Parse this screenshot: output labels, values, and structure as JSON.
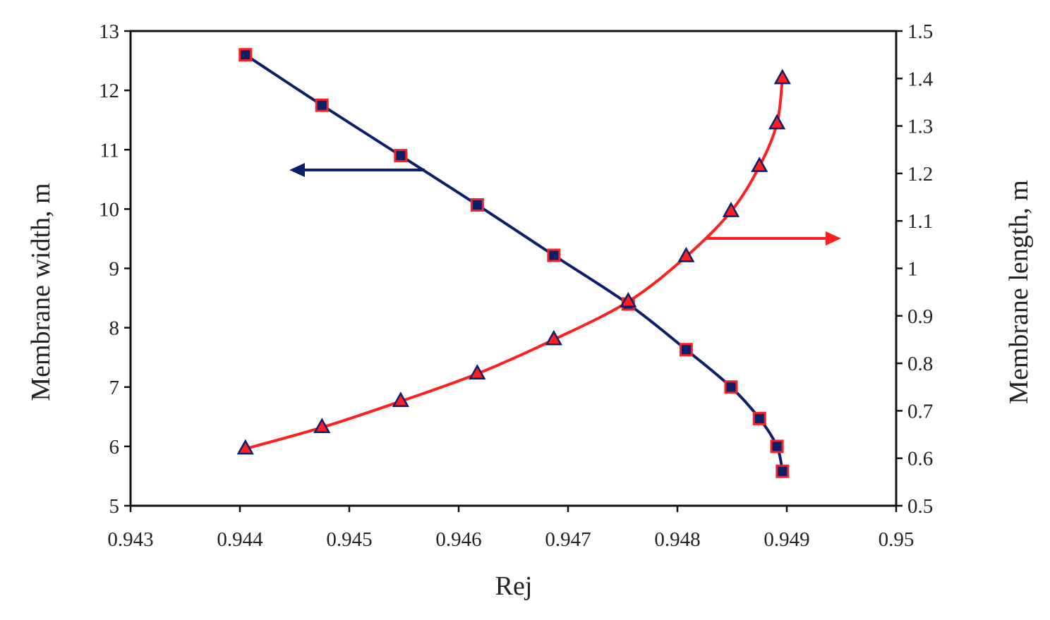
{
  "chart_data": {
    "type": "line",
    "title": "",
    "xlabel": "Rej",
    "ylabel_left": "Membrane  width,  m",
    "ylabel_right": "Membrane  length,  m",
    "xlim": [
      0.943,
      0.95
    ],
    "ylim_left": [
      5,
      13
    ],
    "ylim_right": [
      0.5,
      1.5
    ],
    "x_ticks": [
      "0.943",
      "0.944",
      "0.945",
      "0.946",
      "0.947",
      "0.948",
      "0.949",
      "0.95"
    ],
    "y_left_ticks": [
      "5",
      "6",
      "7",
      "8",
      "9",
      "10",
      "11",
      "12",
      "13"
    ],
    "y_right_ticks": [
      "0.5",
      "0.6",
      "0.7",
      "0.8",
      "0.9",
      "1",
      "1.1",
      "1.2",
      "1.3",
      "1.4",
      "1.5"
    ],
    "grid": false,
    "legend": "none",
    "series": [
      {
        "axis": "left",
        "color": "#0d1f6b",
        "marker": "square",
        "marker_fill": "#0d1f6b",
        "marker_edge": "#ff1f1f",
        "x": [
          0.94405,
          0.94475,
          0.94547,
          0.94617,
          0.94687,
          0.94755,
          0.94808,
          0.94849,
          0.94875,
          0.94891,
          0.94896
        ],
        "y": [
          12.6,
          11.75,
          10.9,
          10.07,
          9.22,
          8.4,
          7.63,
          7.0,
          6.47,
          6.0,
          5.58
        ]
      },
      {
        "axis": "right",
        "color": "#ff1f1f",
        "marker": "triangle",
        "marker_fill": "#ff1f1f",
        "marker_edge": "#0d1f6b",
        "x": [
          0.94405,
          0.94475,
          0.94547,
          0.94617,
          0.94687,
          0.94755,
          0.94808,
          0.94849,
          0.94875,
          0.94891,
          0.94896
        ],
        "y": [
          0.62,
          0.665,
          0.72,
          0.778,
          0.85,
          0.93,
          1.025,
          1.12,
          1.215,
          1.305,
          1.4
        ]
      }
    ],
    "annotations": [
      {
        "type": "arrow",
        "points_to": "left axis",
        "color": "#0d1f6b"
      },
      {
        "type": "arrow",
        "points_to": "right axis",
        "color": "#ff1f1f"
      }
    ]
  }
}
